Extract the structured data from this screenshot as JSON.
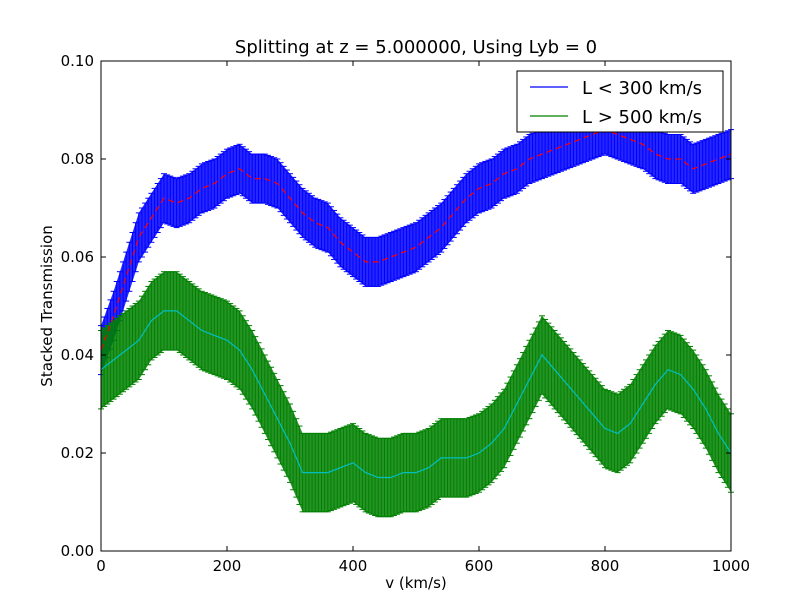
{
  "chart_data": {
    "type": "line",
    "title": "Splitting at z = 5.000000, Using Lyb = 0",
    "xlabel": "v (km/s)",
    "ylabel": "Stacked Transmission",
    "xlim": [
      0,
      1000
    ],
    "ylim": [
      0,
      0.1
    ],
    "xticks": [
      "0",
      "200",
      "400",
      "600",
      "800",
      "1000"
    ],
    "yticks": [
      "0.00",
      "0.02",
      "0.04",
      "0.06",
      "0.08",
      "0.10"
    ],
    "grid": false,
    "legend_position": "top-right",
    "x": [
      0,
      20,
      40,
      60,
      80,
      100,
      120,
      140,
      160,
      180,
      200,
      220,
      240,
      260,
      280,
      300,
      320,
      340,
      360,
      380,
      400,
      420,
      440,
      460,
      480,
      500,
      520,
      540,
      560,
      580,
      600,
      620,
      640,
      660,
      680,
      700,
      720,
      740,
      760,
      780,
      800,
      820,
      840,
      860,
      880,
      900,
      920,
      940,
      960,
      980,
      1000
    ],
    "series": [
      {
        "name": "L < 300 km/s",
        "legend_color": "#0000ff",
        "band_color": "#0000ff",
        "mean_color": "#ff0000",
        "mean_style": "dashed",
        "mean": [
          0.041,
          0.048,
          0.056,
          0.064,
          0.068,
          0.072,
          0.071,
          0.072,
          0.074,
          0.075,
          0.077,
          0.078,
          0.076,
          0.076,
          0.075,
          0.072,
          0.069,
          0.067,
          0.066,
          0.063,
          0.061,
          0.059,
          0.059,
          0.06,
          0.061,
          0.062,
          0.064,
          0.066,
          0.069,
          0.072,
          0.074,
          0.075,
          0.077,
          0.078,
          0.08,
          0.081,
          0.082,
          0.083,
          0.084,
          0.085,
          0.086,
          0.085,
          0.084,
          0.083,
          0.081,
          0.08,
          0.08,
          0.078,
          0.079,
          0.08,
          0.081
        ],
        "error": [
          0.005,
          0.005,
          0.005,
          0.005,
          0.005,
          0.005,
          0.005,
          0.005,
          0.005,
          0.005,
          0.005,
          0.005,
          0.005,
          0.005,
          0.005,
          0.005,
          0.005,
          0.005,
          0.005,
          0.005,
          0.005,
          0.005,
          0.005,
          0.005,
          0.005,
          0.005,
          0.005,
          0.005,
          0.005,
          0.005,
          0.005,
          0.005,
          0.005,
          0.005,
          0.005,
          0.005,
          0.005,
          0.005,
          0.005,
          0.005,
          0.005,
          0.005,
          0.005,
          0.005,
          0.005,
          0.005,
          0.005,
          0.005,
          0.005,
          0.005,
          0.005
        ]
      },
      {
        "name": "L > 500 km/s",
        "legend_color": "#008000",
        "band_color": "#008000",
        "mean_color": "#00bfbf",
        "mean_style": "solid",
        "mean": [
          0.037,
          0.039,
          0.041,
          0.043,
          0.047,
          0.049,
          0.049,
          0.047,
          0.045,
          0.044,
          0.043,
          0.041,
          0.037,
          0.032,
          0.027,
          0.022,
          0.016,
          0.016,
          0.016,
          0.017,
          0.018,
          0.016,
          0.015,
          0.015,
          0.016,
          0.016,
          0.017,
          0.019,
          0.019,
          0.019,
          0.02,
          0.022,
          0.025,
          0.03,
          0.035,
          0.04,
          0.037,
          0.034,
          0.031,
          0.028,
          0.025,
          0.024,
          0.026,
          0.03,
          0.034,
          0.037,
          0.036,
          0.033,
          0.029,
          0.024,
          0.02
        ],
        "error": [
          0.008,
          0.008,
          0.008,
          0.008,
          0.008,
          0.008,
          0.008,
          0.008,
          0.008,
          0.008,
          0.008,
          0.008,
          0.008,
          0.008,
          0.008,
          0.008,
          0.008,
          0.008,
          0.008,
          0.008,
          0.008,
          0.008,
          0.008,
          0.008,
          0.008,
          0.008,
          0.008,
          0.008,
          0.008,
          0.008,
          0.008,
          0.008,
          0.008,
          0.008,
          0.008,
          0.008,
          0.008,
          0.008,
          0.008,
          0.008,
          0.008,
          0.008,
          0.008,
          0.008,
          0.008,
          0.008,
          0.008,
          0.008,
          0.008,
          0.008,
          0.008
        ]
      }
    ]
  }
}
